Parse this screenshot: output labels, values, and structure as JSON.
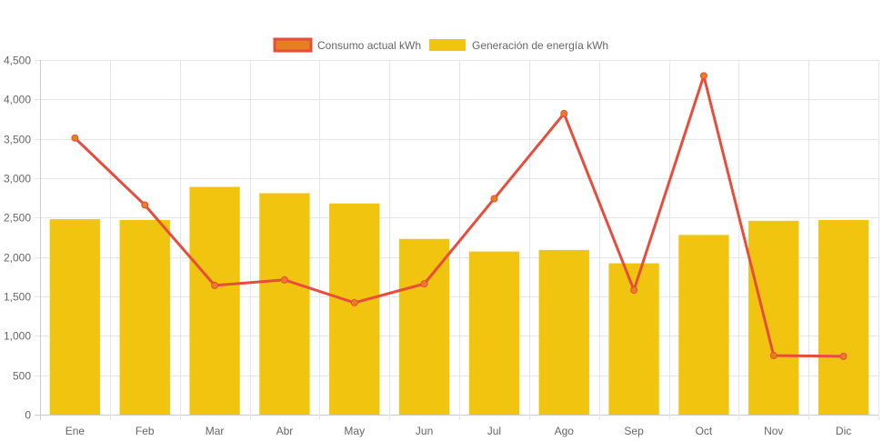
{
  "chart_data": {
    "type": "bar",
    "categories": [
      "Ene",
      "Feb",
      "Mar",
      "Abr",
      "May",
      "Jun",
      "Jul",
      "Ago",
      "Sep",
      "Oct",
      "Nov",
      "Dic"
    ],
    "series": [
      {
        "name": "Consumo actual kWh",
        "type": "line",
        "values": [
          3510,
          2660,
          1640,
          1710,
          1420,
          1660,
          2740,
          3820,
          1580,
          4300,
          750,
          740
        ]
      },
      {
        "name": "Generación de energía kWh",
        "type": "bar",
        "values": [
          2480,
          2470,
          2890,
          2810,
          2680,
          2230,
          2070,
          2090,
          1920,
          2280,
          2460,
          2470
        ]
      }
    ],
    "ylim": [
      0,
      4500
    ],
    "ytick_labels": [
      "0",
      "500",
      "1,000",
      "1,500",
      "2,000",
      "2,500",
      "3,000",
      "3,500",
      "4,000",
      "4,500"
    ],
    "ytick_values": [
      0,
      500,
      1000,
      1500,
      2000,
      2500,
      3000,
      3500,
      4000,
      4500
    ],
    "grid": true,
    "legend_position": "top-center",
    "colors": {
      "bar_fill": "#f1c40f",
      "line_stroke": "#e74c3c",
      "point_fill": "#e67e22",
      "grid": "#e6e6e6",
      "text": "#666666"
    }
  }
}
